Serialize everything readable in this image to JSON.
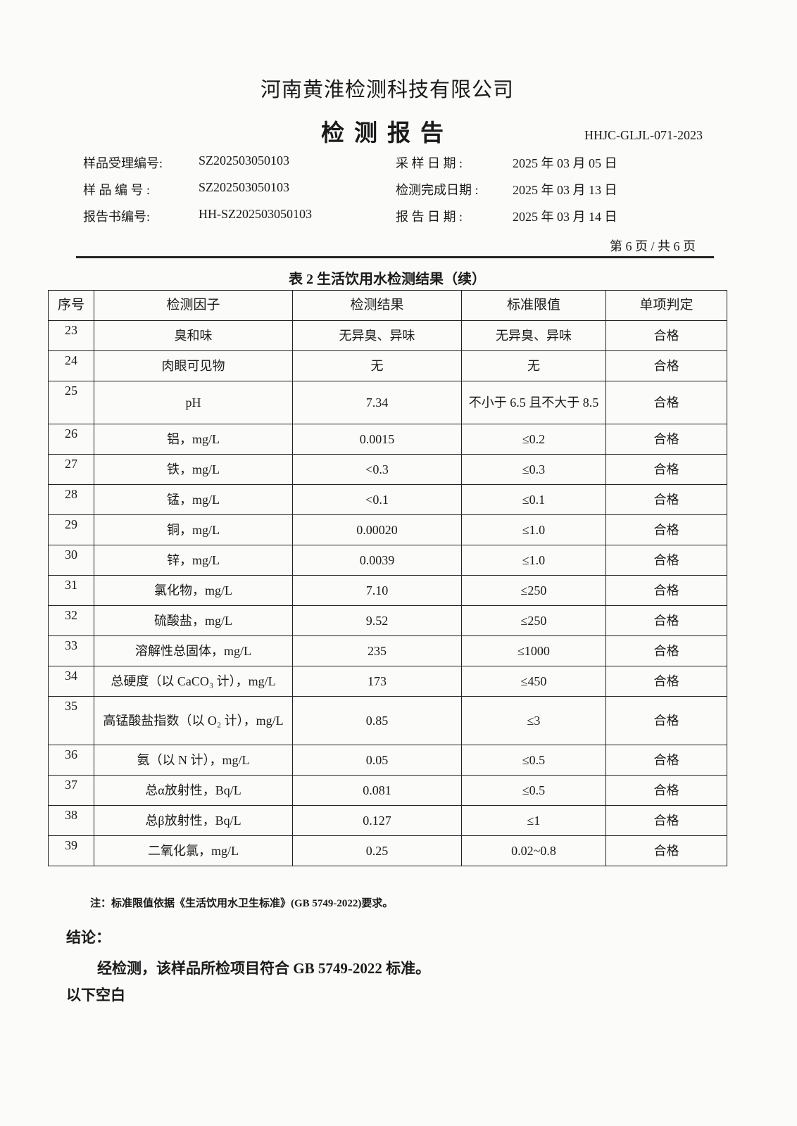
{
  "header": {
    "company": "河南黄淮检测科技有限公司",
    "title": "检测报告",
    "doc_code": "HHJC-GLJL-071-2023"
  },
  "meta": [
    {
      "label": "样品受理编号:",
      "value": "SZ202503050103",
      "label2": "采 样 日 期 :",
      "value2": "2025 年 03 月 05 日"
    },
    {
      "label": "样 品 编 号 :",
      "value": "SZ202503050103",
      "label2": "检测完成日期 :",
      "value2": "2025 年 03 月 13 日"
    },
    {
      "label": "报告书编号:",
      "value": "HH-SZ202503050103",
      "label2": "报 告 日 期 :",
      "value2": "2025 年 03 月 14 日"
    }
  ],
  "page_number": "第 6 页 / 共 6 页",
  "table": {
    "caption": "表 2   生活饮用水检测结果（续）",
    "columns": [
      "序号",
      "检测因子",
      "检测结果",
      "标准限值",
      "单项判定"
    ],
    "rows": [
      [
        "23",
        "臭和味",
        "无异臭、异味",
        "无异臭、异味",
        "合格"
      ],
      [
        "24",
        "肉眼可见物",
        "无",
        "无",
        "合格"
      ],
      [
        "25",
        "pH",
        "7.34",
        "不小于 6.5 且不大于 8.5",
        "合格"
      ],
      [
        "26",
        "铝，mg/L",
        "0.0015",
        "≤0.2",
        "合格"
      ],
      [
        "27",
        "铁，mg/L",
        "<0.3",
        "≤0.3",
        "合格"
      ],
      [
        "28",
        "锰，mg/L",
        "<0.1",
        "≤0.1",
        "合格"
      ],
      [
        "29",
        "铜，mg/L",
        "0.00020",
        "≤1.0",
        "合格"
      ],
      [
        "30",
        "锌，mg/L",
        "0.0039",
        "≤1.0",
        "合格"
      ],
      [
        "31",
        "氯化物，mg/L",
        "7.10",
        "≤250",
        "合格"
      ],
      [
        "32",
        "硫酸盐，mg/L",
        "9.52",
        "≤250",
        "合格"
      ],
      [
        "33",
        "溶解性总固体，mg/L",
        "235",
        "≤1000",
        "合格"
      ],
      [
        "34",
        "总硬度（以 CaCO₃ 计），mg/L",
        "173",
        "≤450",
        "合格"
      ],
      [
        "35",
        "高锰酸盐指数（以 O₂ 计），mg/L",
        "0.85",
        "≤3",
        "合格"
      ],
      [
        "36",
        "氨（以 N 计），mg/L",
        "0.05",
        "≤0.5",
        "合格"
      ],
      [
        "37",
        "总α放射性，Bq/L",
        "0.081",
        "≤0.5",
        "合格"
      ],
      [
        "38",
        "总β放射性，Bq/L",
        "0.127",
        "≤1",
        "合格"
      ],
      [
        "39",
        "二氧化氯，mg/L",
        "0.25",
        "0.02~0.8",
        "合格"
      ]
    ]
  },
  "note": "注：标准限值依据《生活饮用水卫生标准》(GB 5749-2022)要求。",
  "conclusion": {
    "label": "结论：",
    "text": "经检测，该样品所检项目符合 GB 5749-2022 标准。",
    "blank": "以下空白"
  }
}
